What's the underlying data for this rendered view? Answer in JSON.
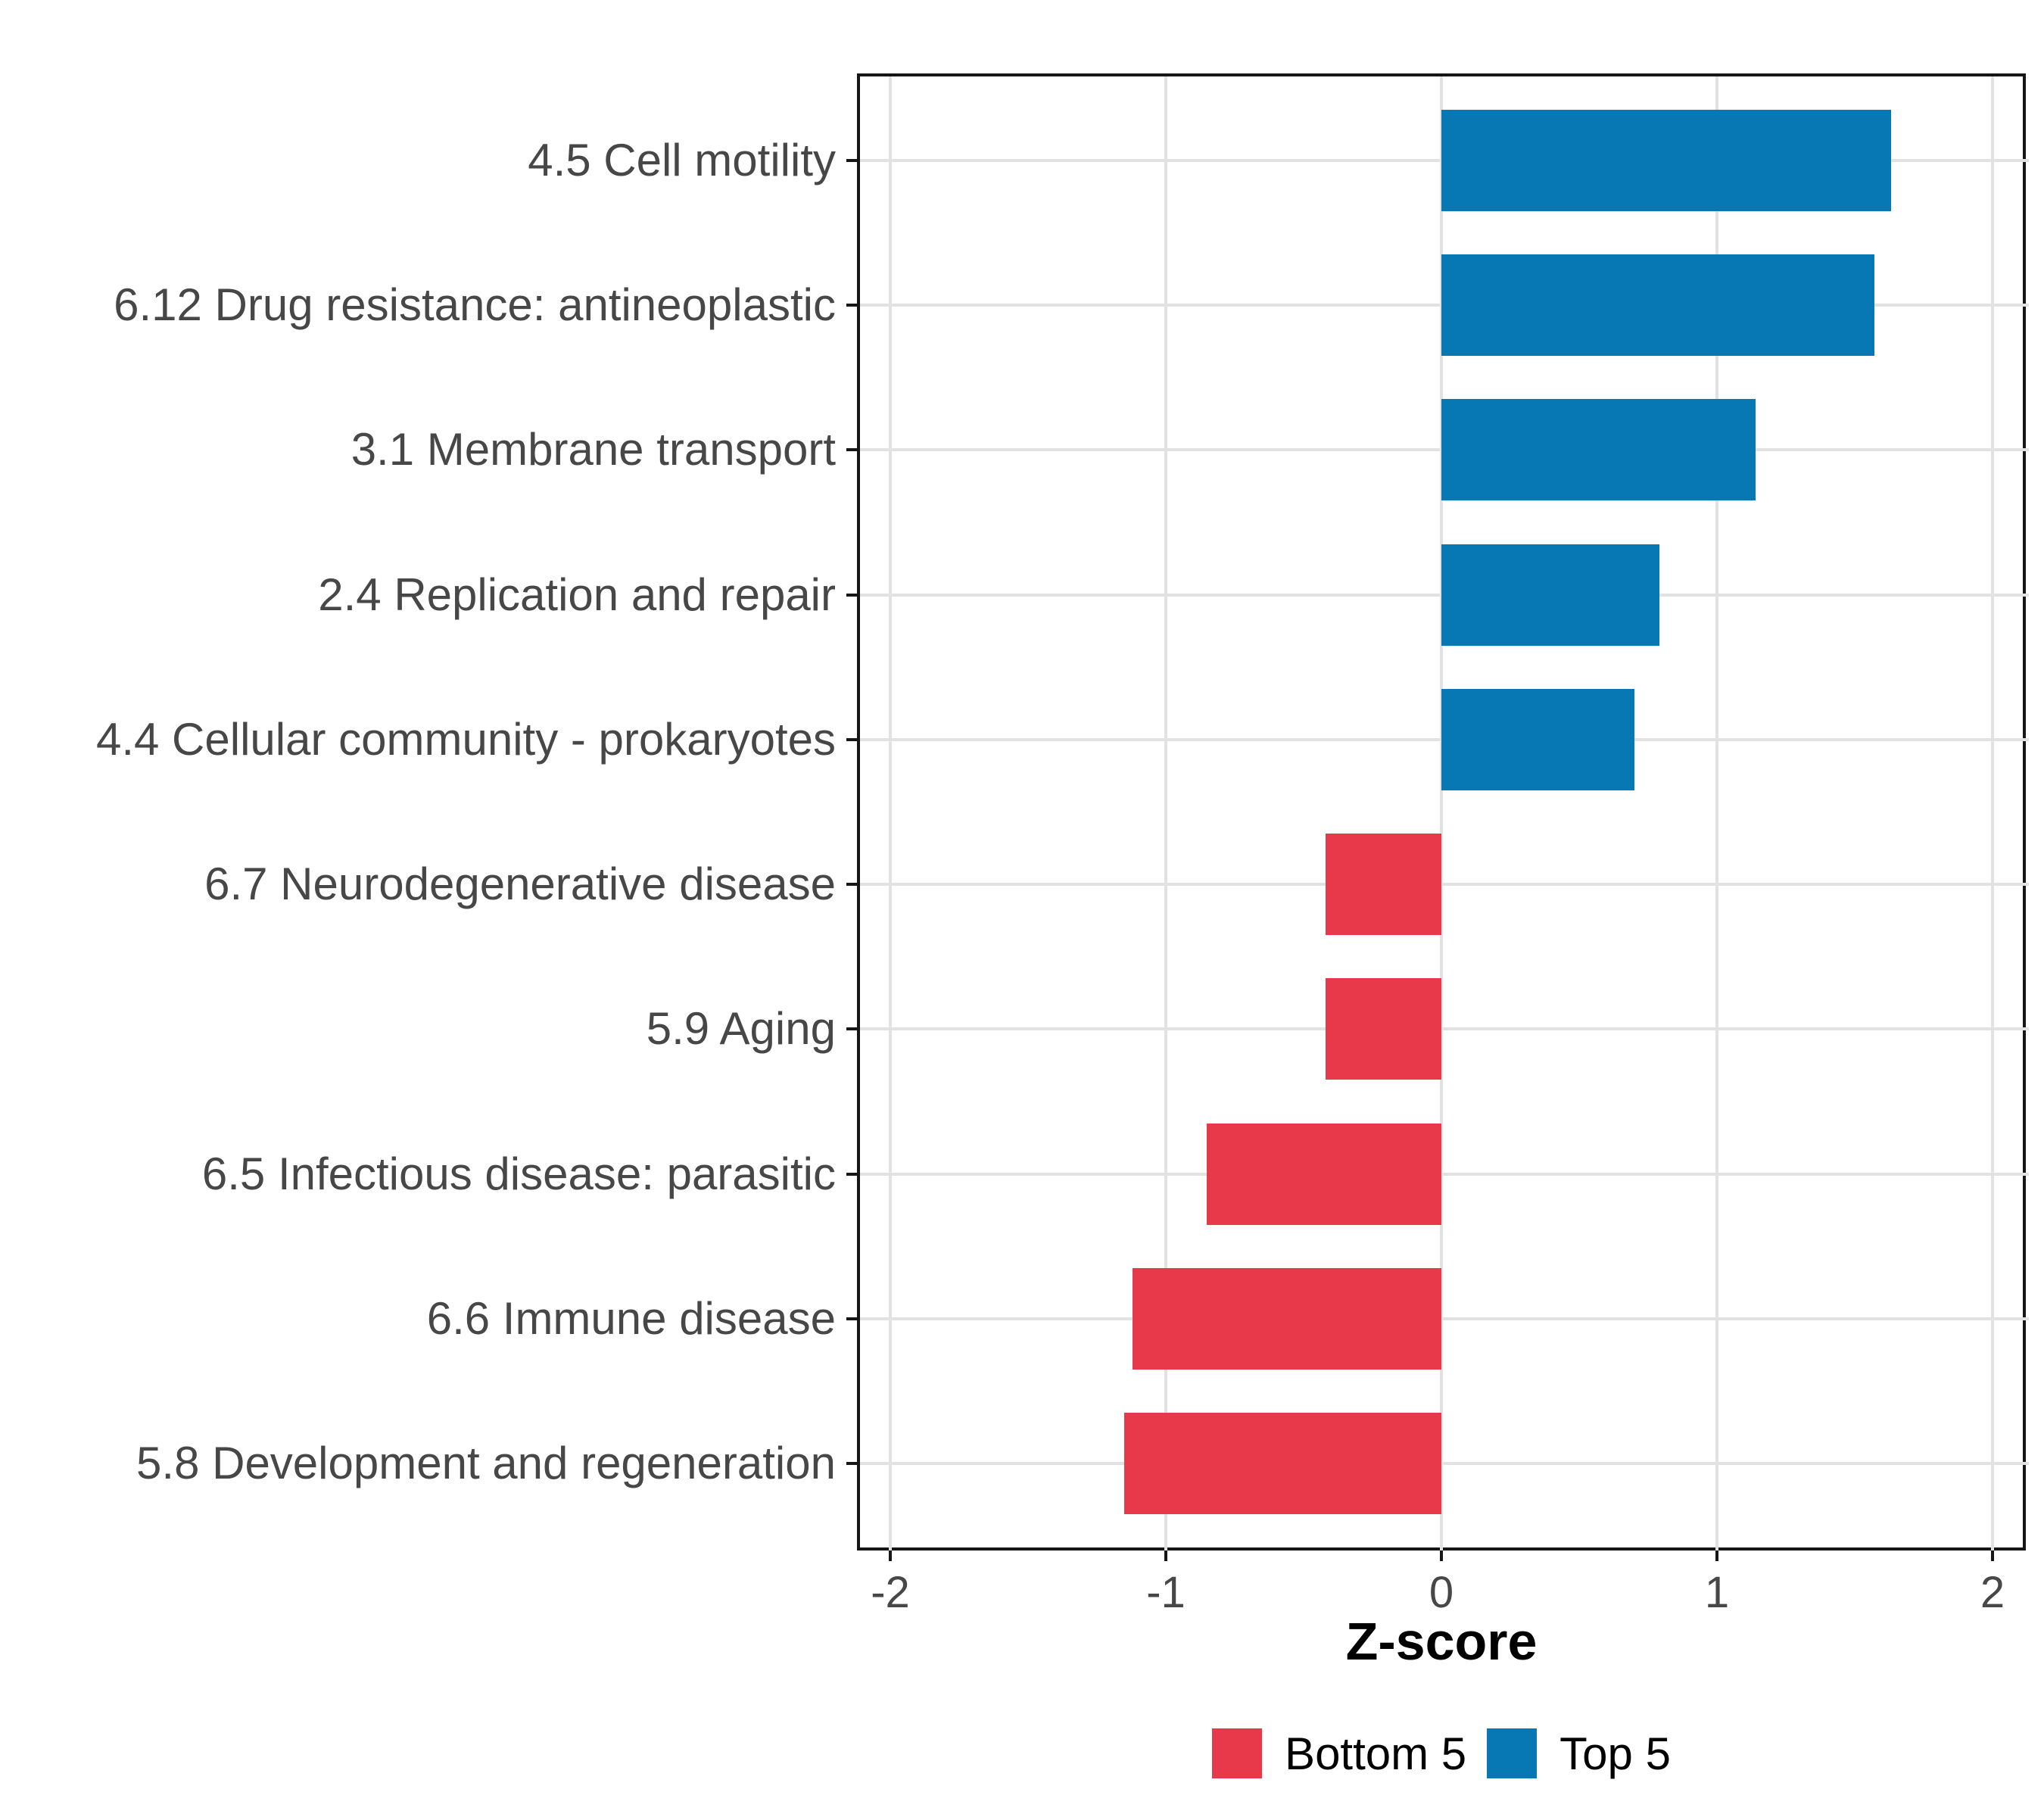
{
  "chart_data": {
    "type": "bar",
    "orientation": "horizontal",
    "title": "",
    "xlabel": "Z-score",
    "ylabel": "",
    "x_ticks": [
      -2,
      -1,
      0,
      1,
      2
    ],
    "xlim": [
      -2.12,
      2.12
    ],
    "grid": "major-only",
    "legend_position": "bottom",
    "bar_width_fraction": 0.7,
    "categories": [
      "4.5 Cell motility",
      "6.12 Drug resistance: antineoplastic",
      "3.1 Membrane transport",
      "2.4 Replication and repair",
      "4.4 Cellular community - prokaryotes",
      "6.7 Neurodegenerative disease",
      "5.9 Aging",
      "6.5 Infectious disease: parasitic",
      "6.6 Immune disease",
      "5.8 Development and regeneration"
    ],
    "values": [
      1.63,
      1.57,
      1.14,
      0.79,
      0.7,
      -0.42,
      -0.42,
      -0.85,
      -1.12,
      -1.15
    ],
    "groups": [
      "Top 5",
      "Top 5",
      "Top 5",
      "Top 5",
      "Top 5",
      "Bottom 5",
      "Bottom 5",
      "Bottom 5",
      "Bottom 5",
      "Bottom 5"
    ],
    "group_colors": {
      "Top 5": "#0778B4",
      "Bottom 5": "#E8394A"
    }
  },
  "legend": {
    "items": [
      {
        "label": "Bottom 5",
        "color": "#E8394A"
      },
      {
        "label": "Top 5",
        "color": "#0778B4"
      }
    ]
  },
  "style_colors": {
    "grid": "#E2E2E2",
    "panel_border": "#161616",
    "axis_text": "#474747",
    "axis_title": "#000000",
    "background": "#FFFFFF"
  }
}
